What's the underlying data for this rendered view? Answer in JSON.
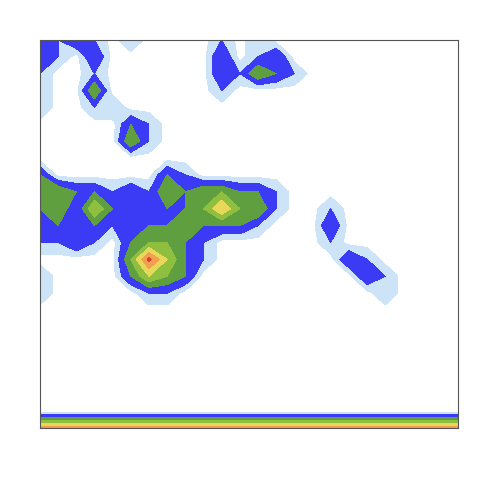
{
  "chart_data": {
    "type": "contour",
    "tick_labels": false,
    "xlim": [
      0,
      23
    ],
    "ylim": [
      23,
      0
    ],
    "levels": [
      0.3,
      1,
      2,
      3,
      4,
      5,
      6,
      7
    ],
    "colors": [
      "#cde3f7",
      "#3b3bf5",
      "#5f9f3f",
      "#8fbf3f",
      "#e8d85a",
      "#f0a050",
      "#e0402a"
    ],
    "cells": [
      [
        2,
        1,
        2,
        1,
        0,
        1,
        0,
        0,
        0,
        0,
        1,
        0,
        1,
        0,
        0,
        0,
        0,
        0,
        0,
        0,
        0,
        0,
        0,
        0
      ],
      [
        2,
        1,
        0,
        2,
        0,
        0,
        0,
        0,
        0,
        0,
        2,
        0,
        1,
        2,
        0,
        0,
        0,
        0,
        0,
        0,
        0,
        0,
        0,
        0
      ],
      [
        1,
        0,
        0,
        1,
        0,
        0,
        0,
        0,
        0,
        0,
        2,
        1,
        3,
        2,
        1,
        0,
        0,
        0,
        0,
        0,
        0,
        0,
        0,
        0
      ],
      [
        1,
        0,
        0,
        3,
        0,
        0,
        0,
        0,
        0,
        0,
        1,
        0,
        0,
        0,
        0,
        0,
        0,
        0,
        0,
        0,
        0,
        0,
        0,
        0
      ],
      [
        1,
        0,
        0,
        1,
        1,
        0,
        0,
        0,
        0,
        0,
        0,
        0,
        0,
        0,
        0,
        0,
        0,
        0,
        0,
        0,
        0,
        0,
        0,
        0
      ],
      [
        0,
        0,
        0,
        0,
        0,
        2,
        1,
        0,
        0,
        0,
        0,
        0,
        0,
        0,
        0,
        0,
        0,
        0,
        0,
        0,
        0,
        0,
        0,
        0
      ],
      [
        0,
        0,
        0,
        0,
        0,
        3,
        1,
        0,
        0,
        0,
        0,
        0,
        0,
        0,
        0,
        0,
        0,
        0,
        0,
        0,
        0,
        0,
        0,
        0
      ],
      [
        0,
        0,
        0,
        0,
        0,
        0,
        0,
        0,
        0,
        0,
        0,
        0,
        0,
        0,
        0,
        0,
        0,
        0,
        0,
        0,
        0,
        0,
        0,
        0
      ],
      [
        2,
        0,
        0,
        0,
        0,
        0,
        0,
        2,
        1,
        0,
        0,
        0,
        0,
        0,
        0,
        0,
        0,
        0,
        0,
        0,
        0,
        0,
        0,
        0
      ],
      [
        3,
        3,
        2,
        2,
        1,
        2,
        1,
        3,
        2,
        3,
        3,
        2,
        2,
        1,
        0,
        0,
        0,
        0,
        0,
        0,
        0,
        0,
        0,
        0
      ],
      [
        2,
        3,
        1,
        4,
        2,
        2,
        2,
        2,
        2,
        3,
        5,
        3,
        3,
        1,
        0,
        0,
        1,
        0,
        0,
        0,
        0,
        0,
        0,
        0
      ],
      [
        2,
        2,
        2,
        2,
        1,
        2,
        2,
        2,
        3,
        2,
        2,
        2,
        1,
        0,
        0,
        0,
        2,
        0,
        0,
        0,
        0,
        0,
        0,
        0
      ],
      [
        1,
        1,
        2,
        1,
        0,
        2,
        3,
        3,
        2,
        1,
        0,
        0,
        0,
        0,
        0,
        0,
        1,
        0,
        0,
        0,
        0,
        0,
        0,
        0
      ],
      [
        0,
        0,
        0,
        0,
        0,
        3,
        6.3,
        4,
        2,
        1,
        0,
        0,
        0,
        0,
        0,
        0,
        0,
        2,
        1,
        0,
        0,
        0,
        0,
        0
      ],
      [
        1,
        0,
        0,
        0,
        0,
        2,
        4,
        3,
        2,
        0,
        0,
        0,
        0,
        0,
        0,
        0,
        0,
        0,
        2,
        1,
        0,
        0,
        0,
        0
      ],
      [
        1,
        0,
        0,
        0,
        0,
        0,
        1,
        1,
        0,
        0,
        0,
        0,
        0,
        0,
        0,
        0,
        0,
        0,
        0,
        1,
        0,
        0,
        0,
        0
      ],
      [
        0,
        0,
        0,
        0,
        0,
        0,
        0,
        0,
        0,
        0,
        0,
        0,
        0,
        0,
        0,
        0,
        0,
        0,
        0,
        0,
        0,
        0,
        0,
        0
      ],
      [
        0,
        0,
        0,
        0,
        0,
        0,
        0,
        0,
        0,
        0,
        0,
        0,
        0,
        0,
        0,
        0,
        0,
        0,
        0,
        0,
        0,
        0,
        0,
        0
      ],
      [
        0,
        0,
        0,
        0,
        0,
        0,
        0,
        0,
        0,
        0,
        0,
        0,
        0,
        0,
        0,
        0,
        0,
        0,
        0,
        0,
        0,
        0,
        0,
        0
      ],
      [
        0,
        0,
        0,
        0,
        0,
        0,
        0,
        0,
        0,
        0,
        0,
        0,
        0,
        0,
        0,
        0,
        0,
        0,
        0,
        0,
        0,
        0,
        0,
        0
      ],
      [
        0,
        0,
        0,
        0,
        0,
        0,
        0,
        0,
        0,
        0,
        0,
        0,
        0,
        0,
        0,
        0,
        0,
        0,
        0,
        0,
        0,
        0,
        0,
        0
      ],
      [
        0,
        0,
        0,
        0,
        0,
        0,
        0,
        0,
        0,
        0,
        0,
        0,
        0,
        0,
        0,
        0,
        0,
        0,
        0,
        0,
        0,
        0,
        0,
        0
      ],
      [
        0,
        0,
        0,
        0,
        0,
        0,
        0,
        0,
        0,
        0,
        0,
        0,
        0,
        0,
        0,
        0,
        0,
        0,
        0,
        0,
        0,
        0,
        0,
        0
      ],
      [
        5.5,
        5.5,
        5.5,
        5.5,
        5.5,
        5.5,
        5.5,
        5.5,
        5.5,
        5.5,
        5.5,
        5.5,
        5.5,
        5.5,
        5.5,
        5.5,
        5.5,
        5.5,
        5.5,
        5.5,
        5.5,
        5.5,
        5.5,
        5.5
      ]
    ]
  }
}
